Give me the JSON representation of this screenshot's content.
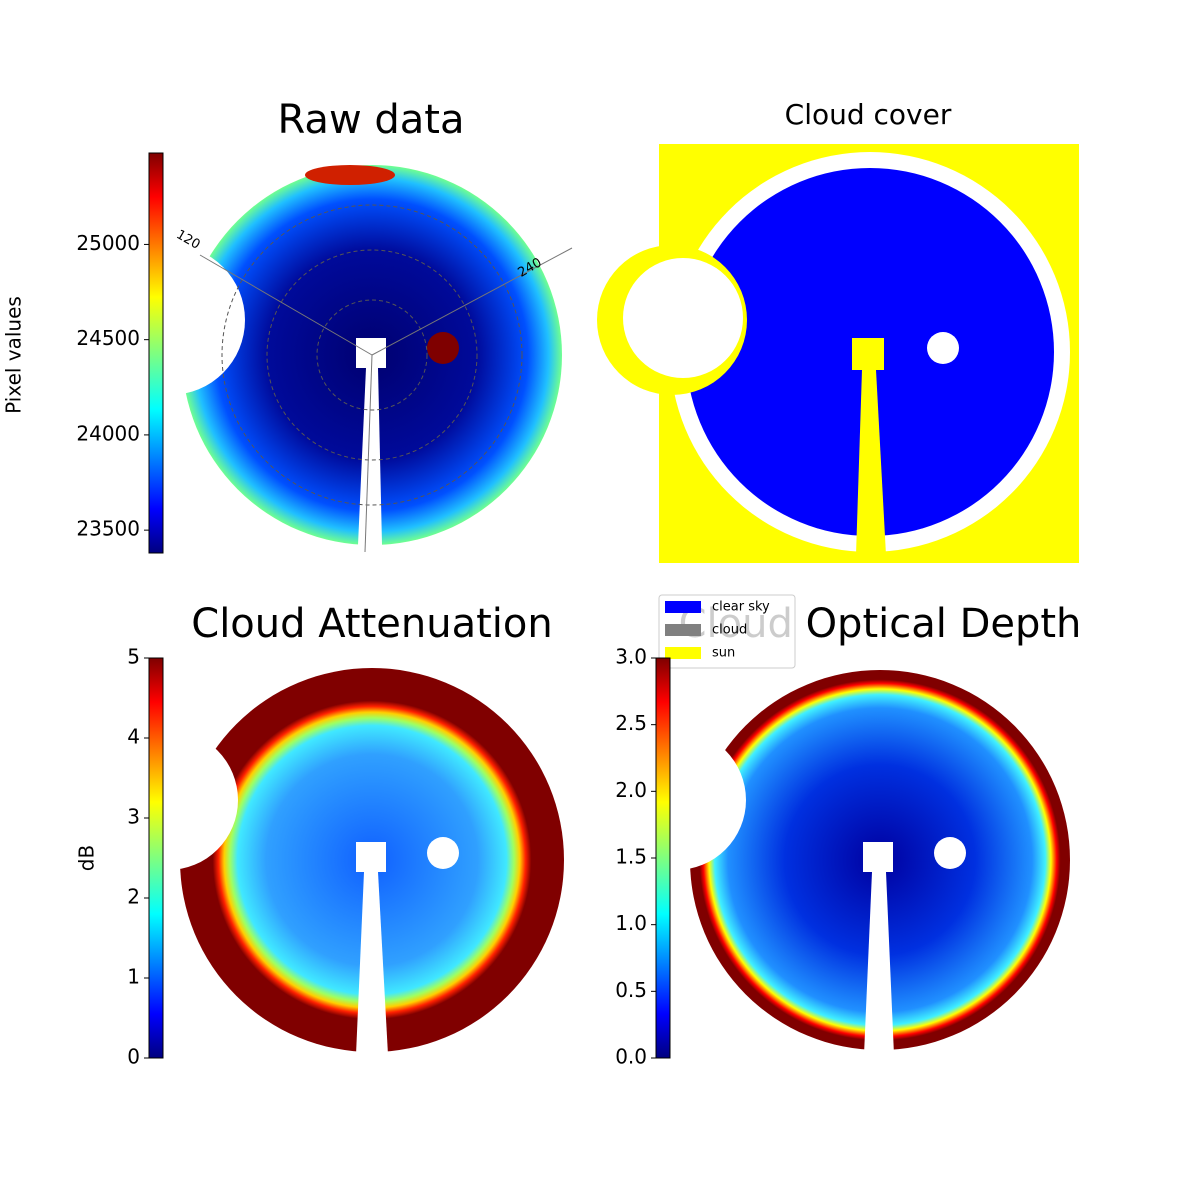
{
  "chart_data": [
    {
      "type": "image",
      "title": "Raw data",
      "colorbar_label": "Pixel values",
      "colormap": "jet",
      "ylim": [
        23380,
        25480
      ],
      "yticks": [
        23500,
        24000,
        24500,
        25000
      ],
      "annotations": [
        "120",
        "240"
      ]
    },
    {
      "type": "image",
      "title": "Cloud cover",
      "legend": [
        {
          "name": "clear sky",
          "color": "#0000ff"
        },
        {
          "name": "cloud",
          "color": "#808080"
        },
        {
          "name": "sun",
          "color": "#ffff00"
        }
      ]
    },
    {
      "type": "image",
      "title": "Cloud Attenuation",
      "colorbar_label": "dB",
      "colormap": "jet",
      "ylim": [
        0,
        5
      ],
      "yticks": [
        0,
        1,
        2,
        3,
        4,
        5
      ]
    },
    {
      "type": "image",
      "title": "Cloud Optical Depth",
      "colormap": "jet",
      "ylim": [
        0,
        3
      ],
      "yticks": [
        {
          "value": 0,
          "label": "0.0"
        },
        0.5,
        {
          "value": 1,
          "label": "1.0"
        },
        1.5,
        {
          "value": 2,
          "label": "2.0"
        },
        2.5,
        {
          "value": 3,
          "label": "3.0"
        }
      ]
    }
  ]
}
